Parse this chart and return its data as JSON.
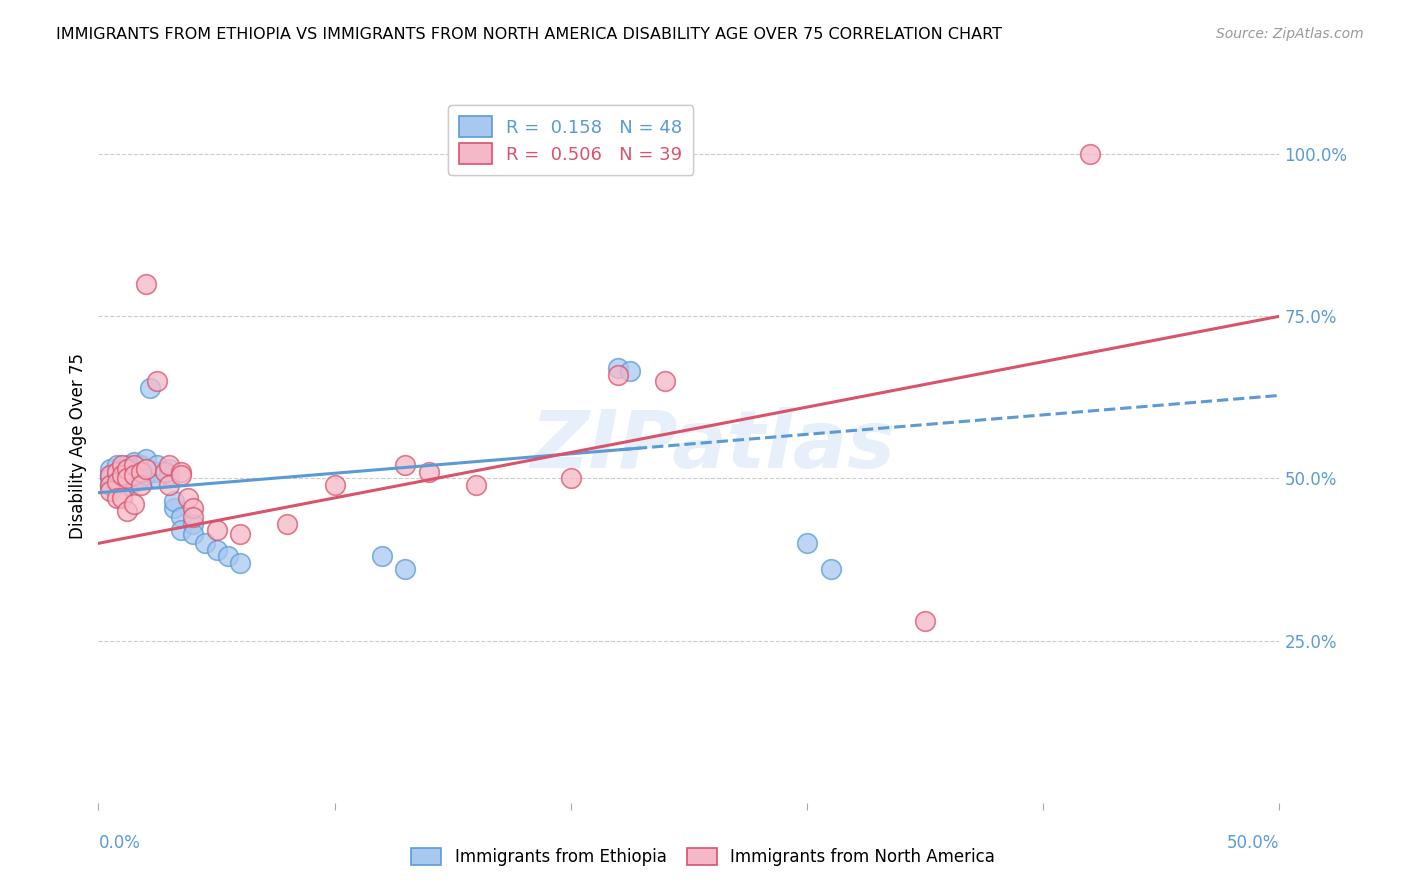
{
  "title": "IMMIGRANTS FROM ETHIOPIA VS IMMIGRANTS FROM NORTH AMERICA DISABILITY AGE OVER 75 CORRELATION CHART",
  "source": "Source: ZipAtlas.com",
  "ylabel": "Disability Age Over 75",
  "xlim": [
    0.0,
    0.5
  ],
  "ylim": [
    0.0,
    1.1
  ],
  "right_ytick_vals": [
    0.25,
    0.5,
    0.75,
    1.0
  ],
  "right_ytick_labels": [
    "25.0%",
    "50.0%",
    "75.0%",
    "100.0%"
  ],
  "ethiopia_color": "#a8c8f0",
  "north_america_color": "#f5b8c8",
  "trendline_ethiopia_color": "#5b9bd5",
  "trendline_north_america_color": "#d9536a",
  "watermark": "ZIPatlas",
  "ethiopia_points": [
    [
      0.005,
      0.505
    ],
    [
      0.005,
      0.515
    ],
    [
      0.005,
      0.49
    ],
    [
      0.005,
      0.5
    ],
    [
      0.008,
      0.51
    ],
    [
      0.008,
      0.52
    ],
    [
      0.008,
      0.495
    ],
    [
      0.008,
      0.505
    ],
    [
      0.01,
      0.515
    ],
    [
      0.01,
      0.5
    ],
    [
      0.01,
      0.51
    ],
    [
      0.01,
      0.495
    ],
    [
      0.012,
      0.52
    ],
    [
      0.012,
      0.51
    ],
    [
      0.012,
      0.5
    ],
    [
      0.012,
      0.49
    ],
    [
      0.015,
      0.515
    ],
    [
      0.015,
      0.505
    ],
    [
      0.015,
      0.495
    ],
    [
      0.015,
      0.525
    ],
    [
      0.018,
      0.51
    ],
    [
      0.018,
      0.5
    ],
    [
      0.018,
      0.52
    ],
    [
      0.02,
      0.515
    ],
    [
      0.02,
      0.505
    ],
    [
      0.02,
      0.53
    ],
    [
      0.022,
      0.64
    ],
    [
      0.025,
      0.51
    ],
    [
      0.025,
      0.5
    ],
    [
      0.025,
      0.52
    ],
    [
      0.03,
      0.515
    ],
    [
      0.03,
      0.505
    ],
    [
      0.032,
      0.455
    ],
    [
      0.032,
      0.465
    ],
    [
      0.035,
      0.44
    ],
    [
      0.035,
      0.42
    ],
    [
      0.04,
      0.43
    ],
    [
      0.04,
      0.415
    ],
    [
      0.045,
      0.4
    ],
    [
      0.05,
      0.39
    ],
    [
      0.055,
      0.38
    ],
    [
      0.06,
      0.37
    ],
    [
      0.12,
      0.38
    ],
    [
      0.13,
      0.36
    ],
    [
      0.22,
      0.67
    ],
    [
      0.225,
      0.665
    ],
    [
      0.3,
      0.4
    ],
    [
      0.31,
      0.36
    ]
  ],
  "north_america_points": [
    [
      0.005,
      0.505
    ],
    [
      0.005,
      0.49
    ],
    [
      0.005,
      0.48
    ],
    [
      0.008,
      0.51
    ],
    [
      0.008,
      0.495
    ],
    [
      0.008,
      0.47
    ],
    [
      0.01,
      0.52
    ],
    [
      0.01,
      0.505
    ],
    [
      0.01,
      0.47
    ],
    [
      0.012,
      0.515
    ],
    [
      0.012,
      0.5
    ],
    [
      0.012,
      0.45
    ],
    [
      0.015,
      0.52
    ],
    [
      0.015,
      0.505
    ],
    [
      0.015,
      0.46
    ],
    [
      0.018,
      0.51
    ],
    [
      0.018,
      0.49
    ],
    [
      0.02,
      0.515
    ],
    [
      0.02,
      0.8
    ],
    [
      0.025,
      0.65
    ],
    [
      0.028,
      0.51
    ],
    [
      0.03,
      0.52
    ],
    [
      0.03,
      0.49
    ],
    [
      0.035,
      0.51
    ],
    [
      0.035,
      0.505
    ],
    [
      0.038,
      0.47
    ],
    [
      0.04,
      0.455
    ],
    [
      0.04,
      0.44
    ],
    [
      0.05,
      0.42
    ],
    [
      0.06,
      0.415
    ],
    [
      0.08,
      0.43
    ],
    [
      0.1,
      0.49
    ],
    [
      0.13,
      0.52
    ],
    [
      0.14,
      0.51
    ],
    [
      0.16,
      0.49
    ],
    [
      0.2,
      0.5
    ],
    [
      0.22,
      0.66
    ],
    [
      0.24,
      0.65
    ],
    [
      0.35,
      0.28
    ],
    [
      0.42,
      1.0
    ]
  ],
  "trendline_eth_slope": 0.3,
  "trendline_eth_intercept": 0.478,
  "trendline_na_slope": 0.7,
  "trendline_na_intercept": 0.4
}
